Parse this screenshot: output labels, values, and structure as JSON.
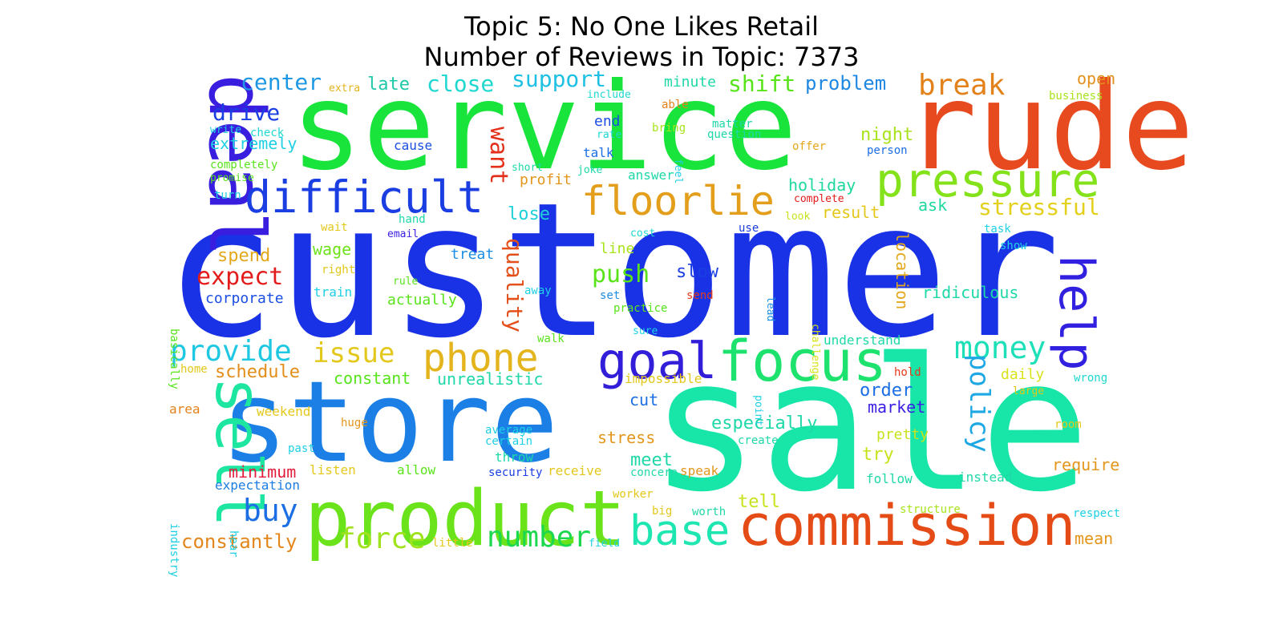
{
  "title": {
    "line1": "Topic 5: No One Likes Retail",
    "line2": "Number of Reviews in Topic: 7373"
  },
  "words": [
    {
      "text": "customer",
      "color": "#1a32e6"
    },
    {
      "text": "service",
      "color": "#18e43c"
    },
    {
      "text": "rude",
      "color": "#e84a1f"
    },
    {
      "text": "sale",
      "color": "#17e6a8"
    },
    {
      "text": "store",
      "color": "#1b7fe6"
    },
    {
      "text": "product",
      "color": "#6be31b"
    },
    {
      "text": "commission",
      "color": "#e44b16"
    },
    {
      "text": "deal",
      "color": "#3a1ee0"
    },
    {
      "text": "difficult",
      "color": "#1b3ee2"
    },
    {
      "text": "pressure",
      "color": "#84e21b"
    },
    {
      "text": "floorlie",
      "color": "#e39e1b"
    },
    {
      "text": "focus",
      "color": "#1de36e"
    },
    {
      "text": "phone",
      "color": "#e3b41b"
    },
    {
      "text": "goal",
      "color": "#321ed8"
    },
    {
      "text": "sell",
      "color": "#1de6a0"
    },
    {
      "text": "base",
      "color": "#1de6b0"
    },
    {
      "text": "help",
      "color": "#3120e0"
    },
    {
      "text": "money",
      "color": "#1ee0b8"
    },
    {
      "text": "break",
      "color": "#e3821b"
    },
    {
      "text": "want",
      "color": "#e3301b"
    },
    {
      "text": "quality",
      "color": "#e3501b"
    },
    {
      "text": "provide",
      "color": "#1ec8e3"
    },
    {
      "text": "issue",
      "color": "#e3c81b"
    },
    {
      "text": "policy",
      "color": "#1ea8e3"
    },
    {
      "text": "buy",
      "color": "#1b6ee3"
    },
    {
      "text": "force",
      "color": "#9ee31b"
    },
    {
      "text": "number",
      "color": "#1bd84e"
    },
    {
      "text": "constantly",
      "color": "#e3861b"
    },
    {
      "text": "support",
      "color": "#1ec0e3"
    },
    {
      "text": "close",
      "color": "#1ed8d0"
    },
    {
      "text": "center",
      "color": "#1e98e3"
    },
    {
      "text": "late",
      "color": "#1ec8a8"
    },
    {
      "text": "shift",
      "color": "#58e31b"
    },
    {
      "text": "problem",
      "color": "#1e88e3"
    },
    {
      "text": "drive",
      "color": "#1b3ee3"
    },
    {
      "text": "extremely",
      "color": "#1ed0e3"
    },
    {
      "text": "stressful",
      "color": "#e3d01b"
    },
    {
      "text": "night",
      "color": "#a8e31b"
    },
    {
      "text": "open",
      "color": "#e3901b"
    },
    {
      "text": "minute",
      "color": "#1ed8a8"
    },
    {
      "text": "expect",
      "color": "#e31b1b"
    },
    {
      "text": "push",
      "color": "#58e31b"
    },
    {
      "text": "lose",
      "color": "#1ed0d8"
    },
    {
      "text": "holiday",
      "color": "#1ed8a0"
    },
    {
      "text": "result",
      "color": "#e3c81b"
    },
    {
      "text": "ask",
      "color": "#1ed8a0"
    },
    {
      "text": "spend",
      "color": "#e3a81b"
    },
    {
      "text": "wage",
      "color": "#6ee31b"
    },
    {
      "text": "ridiculous",
      "color": "#1ed8a8"
    },
    {
      "text": "slow",
      "color": "#1b3ee3"
    },
    {
      "text": "schedule",
      "color": "#e38e1b"
    },
    {
      "text": "constant",
      "color": "#58e31b"
    },
    {
      "text": "unrealistic",
      "color": "#1ed8a8"
    },
    {
      "text": "order",
      "color": "#1b6ee3"
    },
    {
      "text": "especially",
      "color": "#1ed8a8"
    },
    {
      "text": "market",
      "color": "#3a1ee3"
    },
    {
      "text": "meet",
      "color": "#1ed8a8"
    },
    {
      "text": "try",
      "color": "#c8e31b"
    },
    {
      "text": "stress",
      "color": "#e3961b"
    },
    {
      "text": "cut",
      "color": "#1b6ee3"
    },
    {
      "text": "tell",
      "color": "#c8e31b"
    },
    {
      "text": "require",
      "color": "#e3961b"
    },
    {
      "text": "mean",
      "color": "#e3961b"
    },
    {
      "text": "minimum",
      "color": "#e31b3a"
    },
    {
      "text": "expectation",
      "color": "#1b7ee3"
    },
    {
      "text": "corporate",
      "color": "#1b4ee3"
    },
    {
      "text": "treat",
      "color": "#1b8ee3"
    },
    {
      "text": "actually",
      "color": "#58e31b"
    },
    {
      "text": "location",
      "color": "#e3a81b"
    },
    {
      "text": "line",
      "color": "#a8e31b"
    },
    {
      "text": "daily",
      "color": "#d8e31b"
    },
    {
      "text": "pretty",
      "color": "#c8e31b"
    },
    {
      "text": "end",
      "color": "#1b4ee3"
    },
    {
      "text": "talk",
      "color": "#1b6ee3"
    },
    {
      "text": "cause",
      "color": "#1b4ee3"
    },
    {
      "text": "profit",
      "color": "#e3961b"
    },
    {
      "text": "answer",
      "color": "#1ed8a8"
    },
    {
      "text": "matter",
      "color": "#1ed8a8"
    },
    {
      "text": "question",
      "color": "#1ed8a8"
    },
    {
      "text": "bring",
      "color": "#a8e31b"
    },
    {
      "text": "able",
      "color": "#e3821b"
    },
    {
      "text": "offer",
      "color": "#e3a81b"
    },
    {
      "text": "person",
      "color": "#1b6ee3"
    },
    {
      "text": "business",
      "color": "#a8e31b"
    },
    {
      "text": "include",
      "color": "#1ed8d0"
    },
    {
      "text": "extra",
      "color": "#e3b41b"
    },
    {
      "text": "write",
      "color": "#1ed0e3"
    },
    {
      "text": "check",
      "color": "#1ed8d0"
    },
    {
      "text": "completely",
      "color": "#58e31b"
    },
    {
      "text": "promise",
      "color": "#58e31b"
    },
    {
      "text": "turn",
      "color": "#1ed0e3"
    },
    {
      "text": "rate",
      "color": "#1ed8d0"
    },
    {
      "text": "short",
      "color": "#1ed8a8"
    },
    {
      "text": "joke",
      "color": "#1ed8a8"
    },
    {
      "text": "feel",
      "color": "#1ed0e3"
    },
    {
      "text": "complete",
      "color": "#e31b1b"
    },
    {
      "text": "look",
      "color": "#c8e31b"
    },
    {
      "text": "hand",
      "color": "#1ed8a8"
    },
    {
      "text": "email",
      "color": "#3a1ee3"
    },
    {
      "text": "wait",
      "color": "#e3c81b"
    },
    {
      "text": "right",
      "color": "#e3c81b"
    },
    {
      "text": "rule",
      "color": "#58e31b"
    },
    {
      "text": "train",
      "color": "#1ed0e3"
    },
    {
      "text": "away",
      "color": "#1ed0e3"
    },
    {
      "text": "set",
      "color": "#1b8ee3"
    },
    {
      "text": "practice",
      "color": "#58e31b"
    },
    {
      "text": "send",
      "color": "#e33a1b"
    },
    {
      "text": "cost",
      "color": "#1ed8d0"
    },
    {
      "text": "use",
      "color": "#1b3ee3"
    },
    {
      "text": "lead",
      "color": "#1b8ee3"
    },
    {
      "text": "challenge",
      "color": "#d8e31b"
    },
    {
      "text": "task",
      "color": "#1ed0e3"
    },
    {
      "text": "show",
      "color": "#1ed0e3"
    },
    {
      "text": "sure",
      "color": "#1ed0e3"
    },
    {
      "text": "walk",
      "color": "#58e31b"
    },
    {
      "text": "understand",
      "color": "#1ed8a8"
    },
    {
      "text": "hold",
      "color": "#e33a1b"
    },
    {
      "text": "wrong",
      "color": "#1ed8d0"
    },
    {
      "text": "impossible",
      "color": "#e3c81b"
    },
    {
      "text": "point",
      "color": "#1ed0e3"
    },
    {
      "text": "large",
      "color": "#e3c81b"
    },
    {
      "text": "basically",
      "color": "#58e31b"
    },
    {
      "text": "home",
      "color": "#e3c81b"
    },
    {
      "text": "area",
      "color": "#e3821b"
    },
    {
      "text": "weekend",
      "color": "#e3c81b"
    },
    {
      "text": "huge",
      "color": "#e3961b"
    },
    {
      "text": "average",
      "color": "#1ed0e3"
    },
    {
      "text": "certain",
      "color": "#1ed0e3"
    },
    {
      "text": "throw",
      "color": "#1ed8a8"
    },
    {
      "text": "create",
      "color": "#1ed8a8"
    },
    {
      "text": "room",
      "color": "#e3c81b"
    },
    {
      "text": "past",
      "color": "#1ed0e3"
    },
    {
      "text": "listen",
      "color": "#e3c81b"
    },
    {
      "text": "allow",
      "color": "#58e31b"
    },
    {
      "text": "security",
      "color": "#1b3ee3"
    },
    {
      "text": "receive",
      "color": "#e3c81b"
    },
    {
      "text": "concern",
      "color": "#1ed8a8"
    },
    {
      "text": "speak",
      "color": "#e3961b"
    },
    {
      "text": "follow",
      "color": "#1ed8a8"
    },
    {
      "text": "instead",
      "color": "#1ed8a8"
    },
    {
      "text": "industry",
      "color": "#1ed0e3"
    },
    {
      "text": "hear",
      "color": "#1ed0e3"
    },
    {
      "text": "worker",
      "color": "#e3c81b"
    },
    {
      "text": "big",
      "color": "#e3c81b"
    },
    {
      "text": "worth",
      "color": "#1ed8a8"
    },
    {
      "text": "structure",
      "color": "#a8e31b"
    },
    {
      "text": "respect",
      "color": "#1ed0e3"
    },
    {
      "text": "little",
      "color": "#e3c81b"
    },
    {
      "text": "field",
      "color": "#1ed0e3"
    }
  ]
}
